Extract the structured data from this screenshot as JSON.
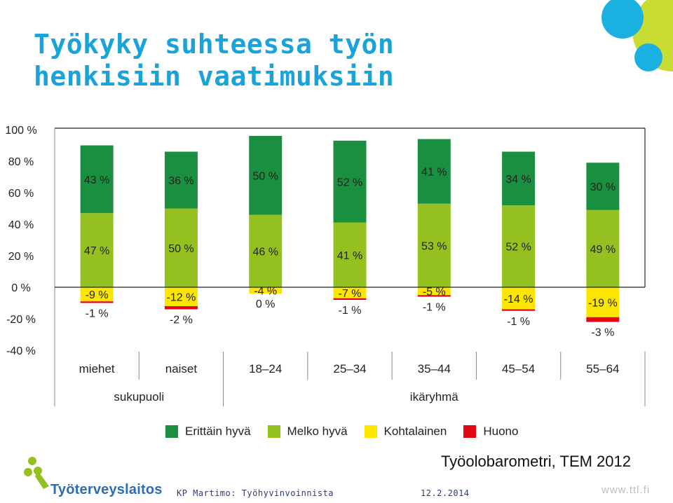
{
  "title": [
    "Työkyky suhteessa työn",
    "henkisiin vaatimuksiin"
  ],
  "chart_data": {
    "type": "bar",
    "stacked": true,
    "diverging": true,
    "categories": [
      "miehet",
      "naiset",
      "18–24",
      "25–34",
      "35–44",
      "45–54",
      "55–64"
    ],
    "groups": [
      {
        "label": "sukupuoli",
        "categories": [
          "miehet",
          "naiset"
        ]
      },
      {
        "label": "ikäryhmä",
        "categories": [
          "18–24",
          "25–34",
          "35–44",
          "45–54",
          "55–64"
        ]
      }
    ],
    "series": [
      {
        "name": "Erittäin hyvä",
        "values": [
          43,
          36,
          50,
          52,
          41,
          34,
          30
        ],
        "labels": [
          "43 %",
          "36 %",
          "50 %",
          "52 %",
          "41 %",
          "34 %",
          "30 %"
        ]
      },
      {
        "name": "Melko hyvä",
        "values": [
          47,
          50,
          46,
          41,
          53,
          52,
          49
        ],
        "labels": [
          "47 %",
          "50 %",
          "46 %",
          "41 %",
          "53 %",
          "52 %",
          "49 %"
        ]
      },
      {
        "name": "Kohtalainen",
        "values": [
          -9,
          -12,
          -4,
          -7,
          -5,
          -14,
          -19
        ],
        "labels": [
          "-9 %",
          "-12 %",
          "-4 %",
          "-7 %",
          "-5 %",
          "-14 %",
          "-19 %"
        ]
      },
      {
        "name": "Huono",
        "values": [
          -1,
          -2,
          0,
          -1,
          -1,
          -1,
          -3
        ],
        "labels": [
          "-1 %",
          "-2 %",
          "0 %",
          "-1 %",
          "-1 %",
          "-1 %",
          "-3 %"
        ]
      }
    ],
    "y_ticks": [
      "100 %",
      "80 %",
      "60 %",
      "40 %",
      "20 %",
      "0 %",
      "-20 %",
      "-40 %"
    ],
    "ylim": [
      -40,
      100
    ],
    "grid": false,
    "legend": "bottom"
  },
  "colors": {
    "title": "#1aa3d8",
    "Erittäin hyvä": "#1a8f3f",
    "Melko hyvä": "#94c11f",
    "Kohtalainen": "#fce600",
    "Huono": "#e30613"
  },
  "source": "Työolobarometri, TEM 2012",
  "footer": {
    "org": "Työterveyslaitos",
    "author": "KP Martimo: Työhyvinvoinnista",
    "date": "12.2.2014",
    "url": "www.ttl.fi"
  }
}
